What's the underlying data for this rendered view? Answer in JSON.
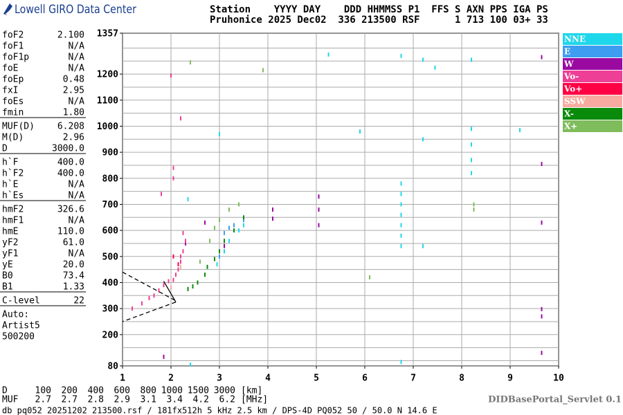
{
  "header": {
    "logo": "Lowell GIRO Data Center",
    "line1": "Station    YYYY DAY    DDD HHMMSS P1  FFS S AXN PPS IGA PS",
    "line2": "Pruhonice 2025 Dec02  336 213500 RSF      1 713 100 03+ 33"
  },
  "params": [
    [
      [
        "foF2",
        "2.100"
      ],
      [
        "foF1",
        "N/A"
      ],
      [
        "foF1p",
        "N/A"
      ],
      [
        "foE",
        "N/A"
      ],
      [
        "foEp",
        "0.48"
      ],
      [
        "fxI",
        "2.95"
      ],
      [
        "foEs",
        "N/A"
      ],
      [
        "fmin",
        "1.80"
      ]
    ],
    [
      [
        "MUF(D)",
        "6.208"
      ],
      [
        "M(D)",
        "2.96"
      ],
      [
        "D",
        "3000.0"
      ]
    ],
    [
      [
        "h`F",
        "400.0"
      ],
      [
        "h`F2",
        "400.0"
      ],
      [
        "h`E",
        "N/A"
      ],
      [
        "h`Es",
        "N/A"
      ]
    ],
    [
      [
        "hmF2",
        "326.6"
      ],
      [
        "hmF1",
        "N/A"
      ],
      [
        "hmE",
        "110.0"
      ],
      [
        "yF2",
        "61.0"
      ],
      [
        "yF1",
        "N/A"
      ],
      [
        "yE",
        "20.0"
      ],
      [
        "B0",
        "73.4"
      ],
      [
        "B1",
        "1.33"
      ]
    ],
    [
      [
        "C-level",
        "22"
      ]
    ]
  ],
  "auto": [
    "Auto:",
    "Artist5",
    "500200"
  ],
  "chart_data": {
    "type": "scatter",
    "xlim": [
      1,
      10
    ],
    "xticks": [
      1,
      2,
      3,
      4,
      5,
      6,
      7,
      8,
      9,
      10
    ],
    "ylim": [
      80,
      1357
    ],
    "yticks": [
      80,
      200,
      300,
      400,
      500,
      600,
      700,
      800,
      900,
      1000,
      1100,
      1200,
      1357
    ],
    "ygrid_lines": [
      100,
      150,
      250,
      350,
      450,
      550,
      650,
      750,
      850,
      950,
      1050,
      1150,
      1250,
      1300
    ],
    "grid": true,
    "series": [
      {
        "name": "NNE",
        "color": "#1fd7ea",
        "x": [
          2.95,
          3.1,
          3.2,
          3.4,
          3.5,
          6.75,
          6.75,
          6.75,
          6.75,
          6.75,
          6.75,
          6.75,
          6.75,
          6.75,
          8.2,
          8.2,
          8.2,
          8.2,
          7.2,
          7.2,
          3.0,
          5.9,
          5.25,
          7.45,
          7.2,
          8.2,
          9.2,
          2.35,
          2.4
        ],
        "y": [
          470,
          520,
          560,
          600,
          620,
          780,
          740,
          700,
          660,
          620,
          580,
          540,
          1270,
          95,
          930,
          870,
          820,
          990,
          950,
          540,
          970,
          980,
          1275,
          1225,
          1255,
          1255,
          985,
          720,
          85
        ]
      },
      {
        "name": "E",
        "color": "#3d9df0",
        "x": [
          3.1,
          3.3,
          3.5,
          3.2,
          3.0
        ],
        "y": [
          590,
          620,
          640,
          610,
          500
        ]
      },
      {
        "name": "W",
        "color": "#9a0aa0",
        "x": [
          2.3,
          2.7,
          3.1,
          5.05,
          5.05,
          5.05,
          4.1,
          4.1,
          9.65,
          9.65,
          9.65,
          9.65,
          9.65,
          9.65,
          1.85
        ],
        "y": [
          550,
          630,
          540,
          730,
          680,
          620,
          680,
          645,
          1265,
          855,
          630,
          298,
          270,
          130,
          115
        ]
      },
      {
        "name": "Vo-",
        "color": "#ee3f96",
        "x": [
          1.2,
          1.4,
          1.55,
          1.65,
          1.75,
          1.85,
          1.95,
          2.05,
          2.1,
          2.15,
          2.2,
          2.2,
          2.25,
          2.3,
          2.25,
          2.05,
          2.05,
          2.0,
          2.2,
          1.8
        ],
        "y": [
          300,
          320,
          340,
          350,
          370,
          390,
          405,
          410,
          430,
          450,
          480,
          500,
          520,
          560,
          590,
          800,
          840,
          1195,
          1030,
          740
        ]
      },
      {
        "name": "Vo+",
        "color": "#ff0044",
        "x": [
          2.05,
          2.15
        ],
        "y": [
          500,
          470
        ]
      },
      {
        "name": "SSW",
        "color": "#f8aaa0",
        "x": [
          2.0,
          2.2
        ],
        "y": [
          380,
          460
        ]
      },
      {
        "name": "X-",
        "color": "#0a8a0a",
        "x": [
          2.35,
          2.45,
          2.55,
          2.7,
          2.75,
          2.9,
          3.0,
          3.1,
          3.3,
          3.5
        ],
        "y": [
          375,
          385,
          400,
          430,
          460,
          490,
          520,
          560,
          600,
          650
        ]
      },
      {
        "name": "X+",
        "color": "#7fbc5c",
        "x": [
          2.6,
          2.8,
          2.9,
          3.0,
          3.2,
          3.4,
          6.1,
          2.4,
          3.9,
          8.25,
          8.25
        ],
        "y": [
          480,
          560,
          610,
          640,
          680,
          700,
          420,
          1245,
          1215,
          700,
          680
        ]
      }
    ],
    "profile_lines": [
      {
        "style": "dashed",
        "x": [
          1,
          2.1
        ],
        "y": [
          440,
          330
        ]
      },
      {
        "style": "solid",
        "x": [
          1.85,
          2.1
        ],
        "y": [
          405,
          325
        ]
      },
      {
        "style": "dashed",
        "x": [
          2.1,
          1
        ],
        "y": [
          325,
          250
        ]
      }
    ]
  },
  "footer": {
    "d_row": [
      "D",
      "100",
      "200",
      "400",
      "600",
      "800",
      "1000",
      "1500",
      "3000",
      "[km]"
    ],
    "muf_row": [
      "MUF",
      "2.7",
      "2.7",
      "2.8",
      "2.9",
      "3.1",
      "3.4",
      "4.2",
      "6.2",
      "[MHz]"
    ],
    "servlet": "DIDBasePortal_Servlet 0.1",
    "file": "db pq052 20251202 213500.rsf / 181fx512h 5 kHz 2.5 km / DPS-4D PQ052 50 / 50.0 N 14.6 E"
  }
}
